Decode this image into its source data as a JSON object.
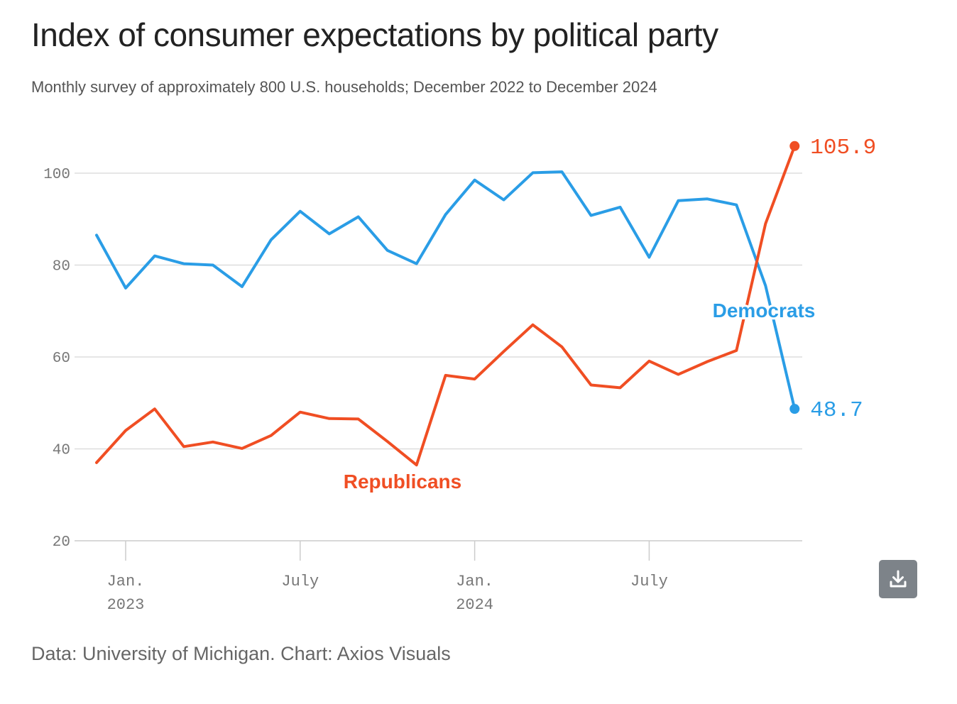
{
  "header": {
    "title": "Index of consumer expectations by political party",
    "subtitle": "Monthly survey of approximately 800 U.S. households; December 2022 to December 2024"
  },
  "footer": {
    "source": "Data: University of Michigan. Chart: Axios Visuals"
  },
  "toolbar": {
    "download_icon": "download-icon"
  },
  "colors": {
    "democrats": "#2a9de6",
    "republicans": "#f04e23",
    "grid": "#dddddd",
    "tick_text": "#777777"
  },
  "chart_data": {
    "type": "line",
    "x": [
      "2022-12",
      "2023-01",
      "2023-02",
      "2023-03",
      "2023-04",
      "2023-05",
      "2023-06",
      "2023-07",
      "2023-08",
      "2023-09",
      "2023-10",
      "2023-11",
      "2023-12",
      "2024-01",
      "2024-02",
      "2024-03",
      "2024-04",
      "2024-05",
      "2024-06",
      "2024-07",
      "2024-08",
      "2024-09",
      "2024-10",
      "2024-11",
      "2024-12"
    ],
    "series": [
      {
        "name": "Democrats",
        "color": "#2a9de6",
        "values": [
          86.5,
          75.0,
          82.0,
          80.3,
          80.0,
          75.3,
          85.5,
          91.7,
          86.8,
          90.5,
          83.2,
          80.3,
          91.0,
          98.5,
          94.2,
          100.1,
          100.3,
          90.8,
          92.6,
          81.7,
          94.0,
          94.4,
          93.1,
          75.5,
          48.7
        ],
        "end_label": "48.7"
      },
      {
        "name": "Republicans",
        "color": "#f04e23",
        "values": [
          37.0,
          44.0,
          48.7,
          40.5,
          41.5,
          40.1,
          42.9,
          48.0,
          46.6,
          46.5,
          41.6,
          36.5,
          56.0,
          55.2,
          61.2,
          67.0,
          62.2,
          53.9,
          53.3,
          59.1,
          56.2,
          59.0,
          61.4,
          89.0,
          105.9
        ],
        "end_label": "105.9"
      }
    ],
    "yticks": [
      20,
      40,
      60,
      80,
      100
    ],
    "ytick_labels": [
      "20",
      "40",
      "60",
      "80",
      "100"
    ],
    "ylim": [
      20,
      106
    ],
    "xticks": [
      {
        "x": "2023-01",
        "label": "Jan.",
        "year": "2023"
      },
      {
        "x": "2023-07",
        "label": "July",
        "year": ""
      },
      {
        "x": "2024-01",
        "label": "Jan.",
        "year": "2024"
      },
      {
        "x": "2024-07",
        "label": "July",
        "year": ""
      }
    ],
    "grid": true,
    "legend": "inline labels",
    "title": "Index of consumer expectations by political party",
    "xlabel": "",
    "ylabel": ""
  }
}
